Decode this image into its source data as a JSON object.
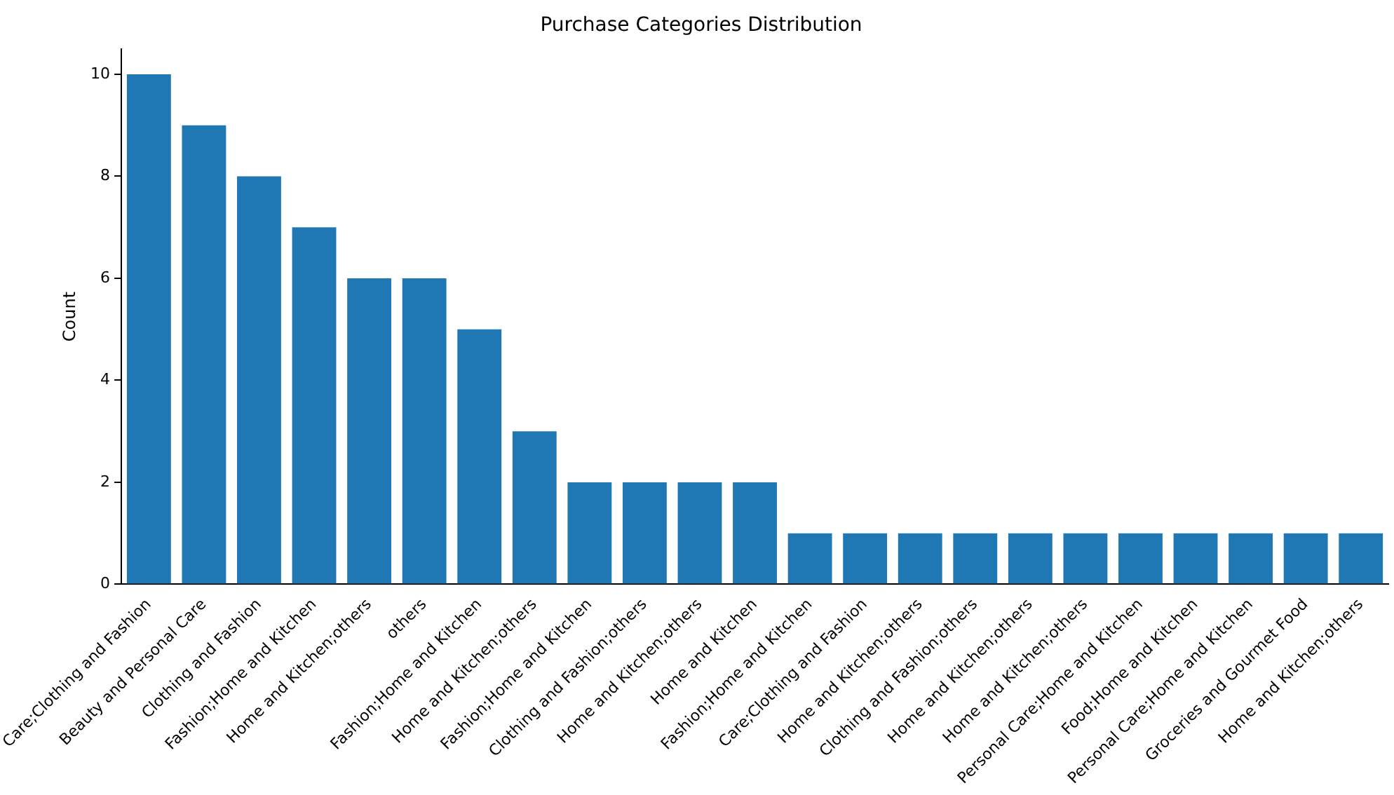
{
  "chart_data": {
    "type": "bar",
    "title": "Purchase Categories Distribution",
    "ylabel": "Count",
    "categories": [
      "Care;Clothing and Fashion",
      "Beauty and Personal Care",
      "Clothing and Fashion",
      "Fashion;Home and Kitchen",
      "Home and Kitchen;others",
      "others",
      "Fashion;Home and Kitchen",
      "Home and Kitchen;others",
      "Fashion;Home and Kitchen",
      "Clothing and Fashion;others",
      "Home and Kitchen;others",
      "Home and Kitchen",
      "Fashion;Home and Kitchen",
      "Care;Clothing and Fashion",
      "Home and Kitchen;others",
      "Clothing and Fashion;others",
      "Home and Kitchen;others",
      "Home and Kitchen;others",
      "Personal Care;Home and Kitchen",
      "Food;Home and Kitchen",
      "Personal Care;Home and Kitchen",
      "Groceries and Gourmet Food",
      "Home and Kitchen;others"
    ],
    "values": [
      10,
      9,
      8,
      7,
      6,
      6,
      5,
      3,
      2,
      2,
      2,
      2,
      1,
      1,
      1,
      1,
      1,
      1,
      1,
      1,
      1,
      1,
      1
    ],
    "color": "#1f77b4",
    "ylim": [
      0,
      10.5
    ],
    "yticks": [
      0,
      2,
      4,
      6,
      8,
      10
    ],
    "grid": false,
    "legend": false
  }
}
